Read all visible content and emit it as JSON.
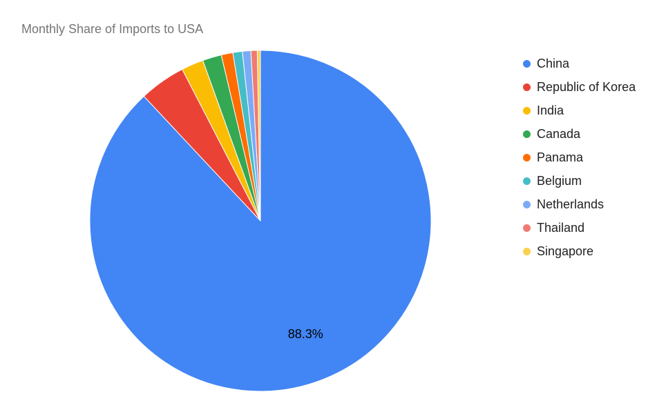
{
  "chart_data": {
    "type": "pie",
    "title": "Monthly Share of Imports to USA",
    "start_angle_deg": 0,
    "direction": "clockwise",
    "slices": [
      {
        "name": "China",
        "value": 88.3,
        "color": "#4285F4",
        "label": "88.3%"
      },
      {
        "name": "Republic of Korea",
        "value": 4.4,
        "color": "#EA4335",
        "label": ""
      },
      {
        "name": "India",
        "value": 2.1,
        "color": "#FBBC04",
        "label": ""
      },
      {
        "name": "Canada",
        "value": 1.8,
        "color": "#34A853",
        "label": ""
      },
      {
        "name": "Panama",
        "value": 1.1,
        "color": "#FF6D01",
        "label": ""
      },
      {
        "name": "Belgium",
        "value": 0.9,
        "color": "#46BDC6",
        "label": ""
      },
      {
        "name": "Netherlands",
        "value": 0.8,
        "color": "#7BAAF7",
        "label": ""
      },
      {
        "name": "Thailand",
        "value": 0.6,
        "color": "#F07B72",
        "label": ""
      },
      {
        "name": "Singapore",
        "value": 0.3,
        "color": "#FCD04F",
        "label": ""
      }
    ],
    "legend_position": "right"
  }
}
